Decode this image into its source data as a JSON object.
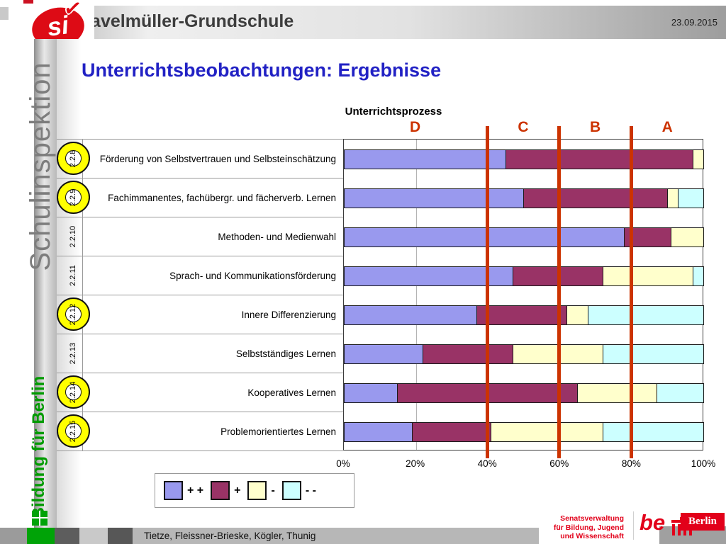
{
  "header": {
    "school_name": "Havelmüller-Grundschule",
    "date": "23.09.2015",
    "logo_text": "si"
  },
  "sidebar": {
    "vertical_title": "Schulinspektion",
    "vertical_subtitle": "Bildung für Berlin"
  },
  "slide": {
    "title": "Unterrichtsbeobachtungen: Ergebnisse"
  },
  "chart_data": {
    "type": "bar",
    "orientation": "horizontal-stacked",
    "title": "Unterrichtsprozess",
    "xlim": [
      0,
      100
    ],
    "x_ticks": [
      "0%",
      "20%",
      "40%",
      "60%",
      "80%",
      "100%"
    ],
    "grid_pcts": [
      20,
      40,
      60,
      80
    ],
    "grade_labels": [
      {
        "label": "D",
        "x_pct": 20
      },
      {
        "label": "C",
        "x_pct": 50
      },
      {
        "label": "B",
        "x_pct": 70
      },
      {
        "label": "A",
        "x_pct": 90
      }
    ],
    "grade_boundaries_pct": [
      40,
      60,
      80
    ],
    "grade_label_color": "#cc3300",
    "boundary_line_color": "#cc3300",
    "categories": [
      "Förderung von Selbstvertrauen und Selbsteinschätzung",
      "Fachimmanentes, fachübergr. und fächerverb. Lernen",
      "Methoden- und Medienwahl",
      "Sprach- und Kommunikationsförderung",
      "Innere Differenzierung",
      "Selbstständiges Lernen",
      "Kooperatives Lernen",
      "Problemorientiertes Lernen"
    ],
    "codes": [
      "2.2.8",
      "2.2.9",
      "2.2.10",
      "2.2.11",
      "2.2.12",
      "2.2.13",
      "2.2.14",
      "2.2.15"
    ],
    "circled": [
      true,
      true,
      false,
      false,
      true,
      false,
      true,
      true
    ],
    "series": [
      {
        "name": "+ +",
        "color": "#9999EE",
        "values": [
          45,
          50,
          78,
          47,
          37,
          22,
          15,
          19
        ]
      },
      {
        "name": "+",
        "color": "#993366",
        "values": [
          52,
          40,
          13,
          25,
          25,
          25,
          50,
          22
        ]
      },
      {
        "name": "-",
        "color": "#FFFFCC",
        "values": [
          3,
          3,
          9,
          25,
          6,
          25,
          22,
          31
        ]
      },
      {
        "name": "- -",
        "color": "#CCFFFF",
        "values": [
          0,
          7,
          0,
          3,
          32,
          28,
          13,
          28
        ]
      }
    ]
  },
  "footer": {
    "authors": "Tietze, Fleissner-Brieske, Kögler, Thunig",
    "senate_lines": [
      "Senatsverwaltung",
      "für Bildung, Jugend",
      "und Wissenschaft"
    ],
    "berlin_logo": {
      "be": "be",
      "city": "Berlin"
    }
  }
}
